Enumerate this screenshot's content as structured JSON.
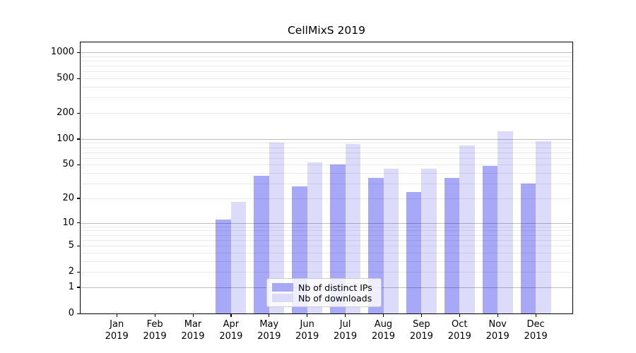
{
  "title": "CellMixS 2019",
  "colors": {
    "ips": "#a8a8f8",
    "downloads": "#dcdcfa"
  },
  "legend": {
    "items": [
      {
        "key": "ips",
        "label": "Nb of distinct IPs"
      },
      {
        "key": "downloads",
        "label": "Nb of downloads"
      }
    ]
  },
  "chart_data": {
    "type": "bar",
    "title": "CellMixS 2019",
    "x_months": [
      "Jan",
      "Feb",
      "Mar",
      "Apr",
      "May",
      "Jun",
      "Jul",
      "Aug",
      "Sep",
      "Oct",
      "Nov",
      "Dec"
    ],
    "x_year": "2019",
    "categories": [
      "Jan 2019",
      "Feb 2019",
      "Mar 2019",
      "Apr 2019",
      "May 2019",
      "Jun 2019",
      "Jul 2019",
      "Aug 2019",
      "Sep 2019",
      "Oct 2019",
      "Nov 2019",
      "Dec 2019"
    ],
    "series": [
      {
        "name": "Nb of distinct IPs",
        "color_key": "ips",
        "values": [
          0,
          0,
          0,
          11,
          37,
          28,
          50,
          35,
          24,
          35,
          49,
          30
        ]
      },
      {
        "name": "Nb of downloads",
        "color_key": "downloads",
        "values": [
          0,
          0,
          0,
          18,
          90,
          53,
          88,
          45,
          45,
          84,
          122,
          95
        ]
      }
    ],
    "y_ticks": [
      0,
      1,
      2,
      5,
      10,
      20,
      50,
      100,
      200,
      500,
      1000
    ],
    "y_grid_major": [
      1,
      10,
      100,
      1000
    ],
    "y_grid_minor": [
      2,
      3,
      4,
      5,
      6,
      7,
      8,
      9,
      20,
      30,
      40,
      50,
      60,
      70,
      80,
      90,
      200,
      300,
      400,
      500,
      600,
      700,
      800,
      900
    ],
    "y_scale": "log10(1+x)",
    "ylim": [
      0,
      1300
    ],
    "xlabel": "",
    "ylabel": "",
    "grid": true,
    "legend_position": "inside lower-center"
  }
}
